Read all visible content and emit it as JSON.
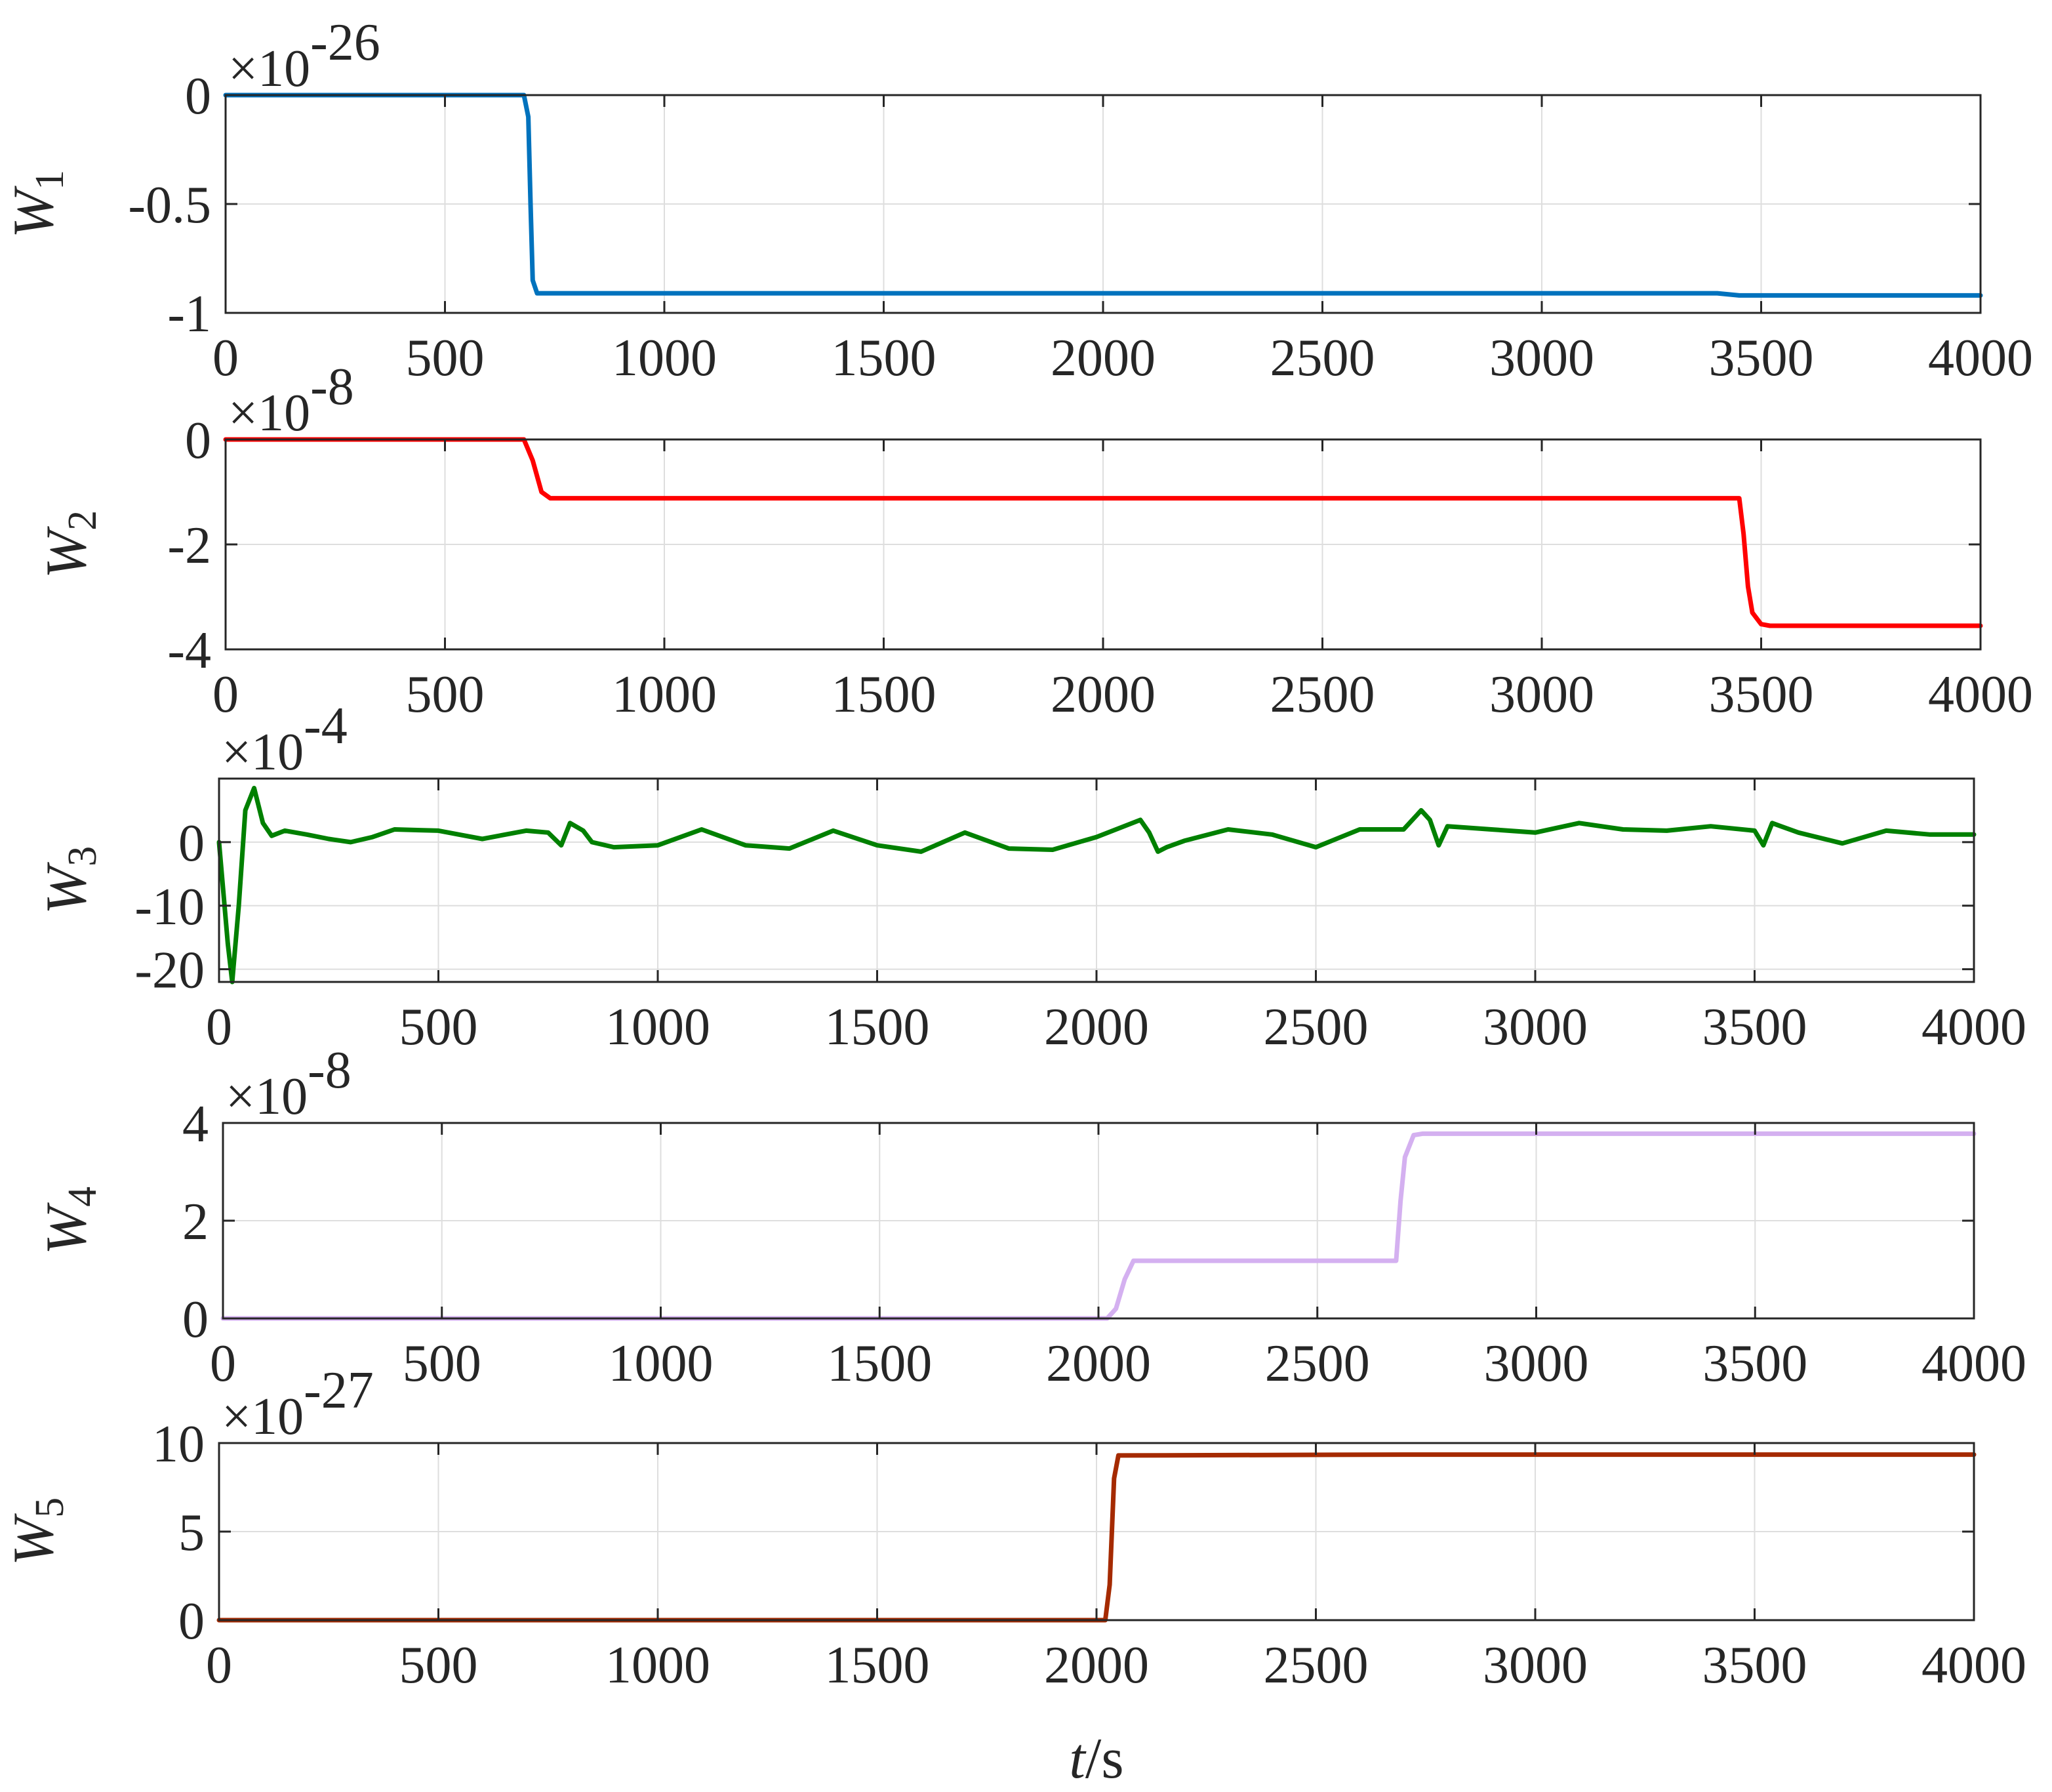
{
  "chart_data": [
    {
      "type": "line",
      "ylabel": "W",
      "ylabel_sub": "1",
      "exponent_label": "×10",
      "exponent_power": "-26",
      "color": "#0072BD",
      "xlim": [
        0,
        4000
      ],
      "ylim": [
        -1,
        0
      ],
      "xticks": [
        0,
        500,
        1000,
        1500,
        2000,
        2500,
        3000,
        3500,
        4000
      ],
      "yticks": [
        0,
        -0.5,
        -1
      ],
      "ytick_labels": [
        "0",
        "-0.5",
        "-1"
      ],
      "x": [
        0,
        650,
        680,
        690,
        695,
        700,
        710,
        3400,
        3450,
        4000
      ],
      "y": [
        0,
        0,
        0,
        -0.1,
        -0.5,
        -0.85,
        -0.91,
        -0.91,
        -0.92,
        -0.92
      ]
    },
    {
      "type": "line",
      "ylabel": "W",
      "ylabel_sub": "2",
      "exponent_label": "×10",
      "exponent_power": "-8",
      "color": "#FF0000",
      "xlim": [
        0,
        4000
      ],
      "ylim": [
        -4,
        0
      ],
      "xticks": [
        0,
        500,
        1000,
        1500,
        2000,
        2500,
        3000,
        3500,
        4000
      ],
      "yticks": [
        0,
        -2,
        -4
      ],
      "ytick_labels": [
        "0",
        "-2",
        "-4"
      ],
      "x": [
        0,
        680,
        700,
        720,
        740,
        760,
        3450,
        3460,
        3470,
        3480,
        3500,
        3520,
        4000
      ],
      "y": [
        0,
        0,
        -0.4,
        -1.0,
        -1.12,
        -1.12,
        -1.12,
        -1.8,
        -2.8,
        -3.3,
        -3.52,
        -3.55,
        -3.55
      ]
    },
    {
      "type": "line",
      "ylabel": "W",
      "ylabel_sub": "3",
      "exponent_label": "×10",
      "exponent_power": "-4",
      "color": "#008000",
      "xlim": [
        0,
        4000
      ],
      "ylim": [
        -22,
        10
      ],
      "xticks": [
        0,
        500,
        1000,
        1500,
        2000,
        2500,
        3000,
        3500,
        4000
      ],
      "yticks": [
        0,
        -10,
        -20
      ],
      "ytick_labels": [
        "0",
        "-10",
        "-20"
      ],
      "x": [
        0,
        20,
        30,
        45,
        60,
        80,
        100,
        120,
        150,
        200,
        250,
        300,
        350,
        400,
        500,
        600,
        700,
        750,
        780,
        800,
        830,
        850,
        900,
        1000,
        1100,
        1200,
        1300,
        1400,
        1500,
        1600,
        1700,
        1800,
        1900,
        2000,
        2100,
        2120,
        2140,
        2160,
        2200,
        2300,
        2400,
        2500,
        2600,
        2700,
        2740,
        2760,
        2780,
        2800,
        2840,
        2900,
        3000,
        3100,
        3200,
        3300,
        3400,
        3500,
        3520,
        3540,
        3560,
        3600,
        3700,
        3800,
        3900,
        4000
      ],
      "y": [
        0,
        -16,
        -22,
        -10,
        5,
        8.5,
        3,
        1,
        1.8,
        1.2,
        0.5,
        0,
        0.8,
        2,
        1.8,
        0.5,
        1.8,
        1.5,
        -0.5,
        3,
        1.8,
        0,
        -0.8,
        -0.5,
        2,
        -0.5,
        -1,
        1.8,
        -0.5,
        -1.5,
        1.5,
        -1,
        -1.2,
        0.8,
        3.5,
        1.5,
        -1.5,
        -0.8,
        0.2,
        2,
        1.2,
        -0.8,
        2,
        2,
        5,
        3.5,
        -0.5,
        2.5,
        2.3,
        2,
        1.5,
        3,
        2,
        1.8,
        2.5,
        1.8,
        -0.5,
        3,
        2.5,
        1.5,
        -0.2,
        1.8,
        1.2,
        1.2
      ]
    },
    {
      "type": "line",
      "ylabel": "W",
      "ylabel_sub": "4",
      "exponent_label": "×10",
      "exponent_power": "-8",
      "color": "#D4B0F0",
      "xlim": [
        0,
        4000
      ],
      "ylim": [
        0,
        4
      ],
      "xticks": [
        0,
        500,
        1000,
        1500,
        2000,
        2500,
        3000,
        3500,
        4000
      ],
      "yticks": [
        4,
        2,
        0
      ],
      "ytick_labels": [
        "4",
        "2",
        "0"
      ],
      "x": [
        0,
        2020,
        2040,
        2060,
        2080,
        2100,
        2680,
        2690,
        2700,
        2720,
        2740,
        4000
      ],
      "y": [
        0,
        0,
        0.2,
        0.8,
        1.18,
        1.18,
        1.18,
        2.4,
        3.3,
        3.75,
        3.78,
        3.78
      ]
    },
    {
      "type": "line",
      "ylabel": "W",
      "ylabel_sub": "5",
      "exponent_label": "×10",
      "exponent_power": "-27",
      "color": "#A52A00",
      "xlim": [
        0,
        4000
      ],
      "ylim": [
        0,
        10
      ],
      "xticks": [
        0,
        500,
        1000,
        1500,
        2000,
        2500,
        3000,
        3500,
        4000
      ],
      "yticks": [
        10,
        5,
        0
      ],
      "ytick_labels": [
        "10",
        "5",
        "0"
      ],
      "x": [
        0,
        2020,
        2030,
        2040,
        2050,
        2060,
        2700,
        4000
      ],
      "y": [
        0,
        0,
        2,
        8,
        9.3,
        9.3,
        9.35,
        9.35
      ],
      "xlabel_italic": "t",
      "xlabel_rest": "/s"
    }
  ]
}
